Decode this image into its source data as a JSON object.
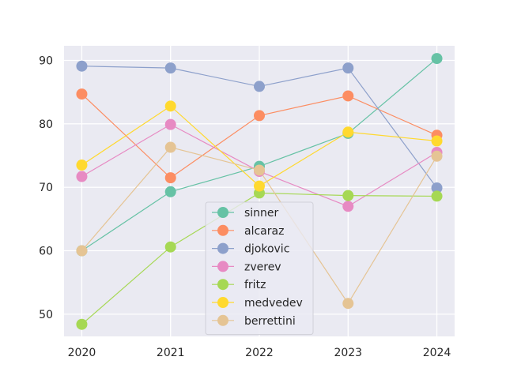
{
  "chart_data": {
    "type": "line",
    "title": "",
    "xlabel": "",
    "ylabel": "",
    "x": [
      2020,
      2021,
      2022,
      2023,
      2024
    ],
    "x_tick_labels": [
      "2020",
      "2021",
      "2022",
      "2023",
      "2024"
    ],
    "y_ticks": [
      50,
      60,
      70,
      80,
      90
    ],
    "y_tick_labels": [
      "50",
      "60",
      "70",
      "80",
      "90"
    ],
    "xlim": [
      2019.8,
      2024.2
    ],
    "ylim": [
      46.5,
      92.3
    ],
    "grid": true,
    "legend_position": "lower-center",
    "series": [
      {
        "name": "sinner",
        "color": "#66c2a5",
        "values": [
          60.0,
          69.3,
          73.3,
          78.5,
          90.3
        ]
      },
      {
        "name": "alcaraz",
        "color": "#fc8d62",
        "values": [
          84.7,
          71.5,
          81.3,
          84.4,
          78.2
        ]
      },
      {
        "name": "djokovic",
        "color": "#8da0cb",
        "values": [
          89.1,
          88.8,
          85.9,
          88.8,
          69.9
        ]
      },
      {
        "name": "zverev",
        "color": "#e78ac3",
        "values": [
          71.7,
          79.9,
          72.5,
          67.0,
          75.5
        ]
      },
      {
        "name": "fritz",
        "color": "#a6d854",
        "values": [
          48.4,
          60.6,
          69.1,
          68.7,
          68.6
        ]
      },
      {
        "name": "medvedev",
        "color": "#ffd92f",
        "values": [
          73.5,
          82.8,
          70.2,
          78.7,
          77.3
        ]
      },
      {
        "name": "berrettini",
        "color": "#e5c494",
        "values": [
          60.0,
          76.3,
          72.7,
          51.7,
          74.9
        ]
      }
    ]
  }
}
